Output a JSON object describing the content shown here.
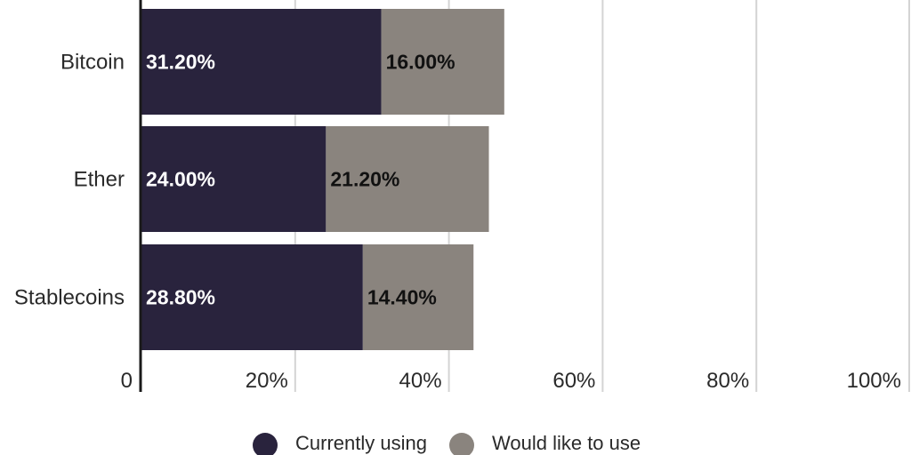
{
  "chart_data": {
    "type": "bar",
    "orientation": "horizontal",
    "stacked": true,
    "categories": [
      "Bitcoin",
      "Ether",
      "Stablecoins"
    ],
    "series": [
      {
        "name": "Currently using",
        "values": [
          31.2,
          24.0,
          28.8
        ],
        "labels": [
          "31.20%",
          "24.00%",
          "28.80%"
        ],
        "color": "#29233d",
        "label_color": "#ffffff"
      },
      {
        "name": "Would like to use",
        "values": [
          16.0,
          21.2,
          14.4
        ],
        "labels": [
          "16.00%",
          "21.20%",
          "14.40%"
        ],
        "color": "#8a847e",
        "label_color": "#111111"
      }
    ],
    "xlim": [
      0,
      100
    ],
    "xticks": [
      0,
      20,
      40,
      60,
      80,
      100
    ],
    "xtick_labels": [
      "0",
      "20%",
      "40%",
      "60%",
      "80%",
      "100%"
    ],
    "grid": true,
    "legend": "bottom-center"
  }
}
